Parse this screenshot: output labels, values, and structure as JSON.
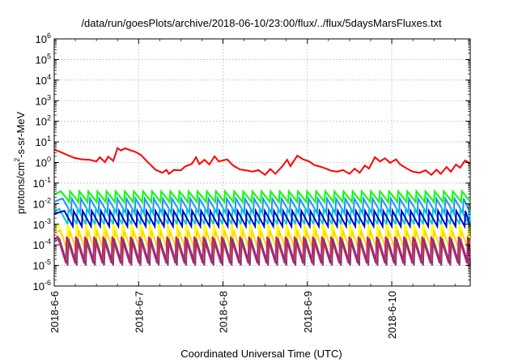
{
  "chart_data": {
    "type": "line",
    "title": "/data/run/goesPlots/archive/2018-06-10/23:00/flux/../flux/5daysMarsFluxes.txt",
    "xlabel": "Coordinated Universal Time (UTC)",
    "ylabel": "protons/cm²-s-sr-MeV",
    "ylabel_parts": {
      "pre": "protons/cm",
      "sup": "2",
      "post": "-s-sr-MeV"
    },
    "yscale": "log",
    "ylim": [
      -6,
      6
    ],
    "y_tick_labels": [
      {
        "base": "10",
        "exp": "-6"
      },
      {
        "base": "10",
        "exp": "-5"
      },
      {
        "base": "10",
        "exp": "-4"
      },
      {
        "base": "10",
        "exp": "-3"
      },
      {
        "base": "10",
        "exp": "-2"
      },
      {
        "base": "10",
        "exp": "-1"
      },
      {
        "base": "10",
        "exp": "0"
      },
      {
        "base": "10",
        "exp": "1"
      },
      {
        "base": "10",
        "exp": "2"
      },
      {
        "base": "10",
        "exp": "3"
      },
      {
        "base": "10",
        "exp": "4"
      },
      {
        "base": "10",
        "exp": "5"
      },
      {
        "base": "10",
        "exp": "6"
      }
    ],
    "x_tick_labels": [
      "2018-6-6",
      "2018-6-7",
      "2018-6-8",
      "2018-6-9",
      "2018-6-10"
    ],
    "x_ticks": [
      0,
      1,
      2,
      3,
      4
    ],
    "xlim": [
      0,
      4.93
    ],
    "grid": true,
    "series": [
      {
        "color": "#ff0000",
        "points": [
          [
            0,
            0.63
          ],
          [
            0.08,
            0.5
          ],
          [
            0.16,
            0.35
          ],
          [
            0.24,
            0.22
          ],
          [
            0.33,
            0.15
          ],
          [
            0.42,
            0.13
          ],
          [
            0.5,
            0.05
          ],
          [
            0.54,
            0.25
          ],
          [
            0.6,
            0.02
          ],
          [
            0.64,
            0.28
          ],
          [
            0.7,
            0.08
          ],
          [
            0.75,
            0.7
          ],
          [
            0.79,
            0.58
          ],
          [
            0.84,
            0.69
          ],
          [
            0.9,
            0.6
          ],
          [
            0.97,
            0.5
          ],
          [
            1.03,
            0.35
          ],
          [
            1.1,
            0.05
          ],
          [
            1.2,
            -0.35
          ],
          [
            1.28,
            -0.5
          ],
          [
            1.33,
            -0.36
          ],
          [
            1.36,
            -0.55
          ],
          [
            1.42,
            -0.36
          ],
          [
            1.5,
            -0.38
          ],
          [
            1.55,
            -0.2
          ],
          [
            1.63,
            -0.07
          ],
          [
            1.68,
            0.25
          ],
          [
            1.72,
            -0.08
          ],
          [
            1.78,
            0.13
          ],
          [
            1.84,
            -0.1
          ],
          [
            1.9,
            0.3
          ],
          [
            1.95,
            0.05
          ],
          [
            2.05,
            0.15
          ],
          [
            2.12,
            -0.15
          ],
          [
            2.2,
            -0.34
          ],
          [
            2.3,
            -0.4
          ],
          [
            2.35,
            -0.45
          ],
          [
            2.42,
            -0.37
          ],
          [
            2.5,
            -0.6
          ],
          [
            2.56,
            -0.32
          ],
          [
            2.62,
            -0.55
          ],
          [
            2.7,
            -0.2
          ],
          [
            2.76,
            0.13
          ],
          [
            2.8,
            -0.18
          ],
          [
            2.88,
            0.33
          ],
          [
            2.95,
            0.15
          ],
          [
            3.02,
            0.05
          ],
          [
            3.08,
            -0.12
          ],
          [
            3.15,
            -0.2
          ],
          [
            3.22,
            -0.3
          ],
          [
            3.28,
            -0.4
          ],
          [
            3.35,
            -0.45
          ],
          [
            3.42,
            -0.37
          ],
          [
            3.5,
            -0.55
          ],
          [
            3.56,
            -0.3
          ],
          [
            3.62,
            -0.5
          ],
          [
            3.68,
            -0.15
          ],
          [
            3.73,
            -0.3
          ],
          [
            3.8,
            0.25
          ],
          [
            3.86,
            0.05
          ],
          [
            3.92,
            0.2
          ],
          [
            3.98,
            -0.02
          ],
          [
            4.05,
            0.15
          ],
          [
            4.1,
            -0.1
          ],
          [
            4.18,
            -0.3
          ],
          [
            4.25,
            -0.45
          ],
          [
            4.33,
            -0.5
          ],
          [
            4.4,
            -0.38
          ],
          [
            4.47,
            -0.6
          ],
          [
            4.53,
            -0.35
          ],
          [
            4.58,
            -0.55
          ],
          [
            4.65,
            -0.22
          ],
          [
            4.7,
            -0.45
          ],
          [
            4.76,
            -0.1
          ],
          [
            4.81,
            -0.25
          ],
          [
            4.87,
            0.1
          ],
          [
            4.93,
            -0.05
          ]
        ]
      },
      {
        "color": "#00ff00",
        "sawtooth": {
          "start": 0.08,
          "period": 0.108,
          "high": -1.4,
          "low": -1.92
        }
      },
      {
        "color": "#1e90ff",
        "sawtooth": {
          "start": 0.1,
          "period": 0.108,
          "high": -1.75,
          "low": -2.45
        }
      },
      {
        "color": "#00cccc",
        "sawtooth": {
          "start": 0.06,
          "period": 0.108,
          "high": -2.25,
          "low": -3.0
        }
      },
      {
        "color": "#0000cd",
        "sawtooth": {
          "start": 0.12,
          "period": 0.108,
          "high": -2.35,
          "low": -3.1
        }
      },
      {
        "color": "#ffff00",
        "sawtooth": {
          "start": 0.05,
          "period": 0.108,
          "high": -3.0,
          "low": -4.2
        }
      },
      {
        "color": "#ffd700",
        "sawtooth": {
          "start": 0.07,
          "period": 0.108,
          "high": -3.3,
          "low": -4.4
        }
      },
      {
        "color": "#c71585",
        "sawtooth": {
          "start": 0.04,
          "period": 0.108,
          "high": -3.6,
          "low": -4.9
        }
      },
      {
        "color": "#8b3a62",
        "sawtooth": {
          "start": 0.06,
          "period": 0.108,
          "high": -3.7,
          "low": -5.0
        }
      }
    ]
  }
}
